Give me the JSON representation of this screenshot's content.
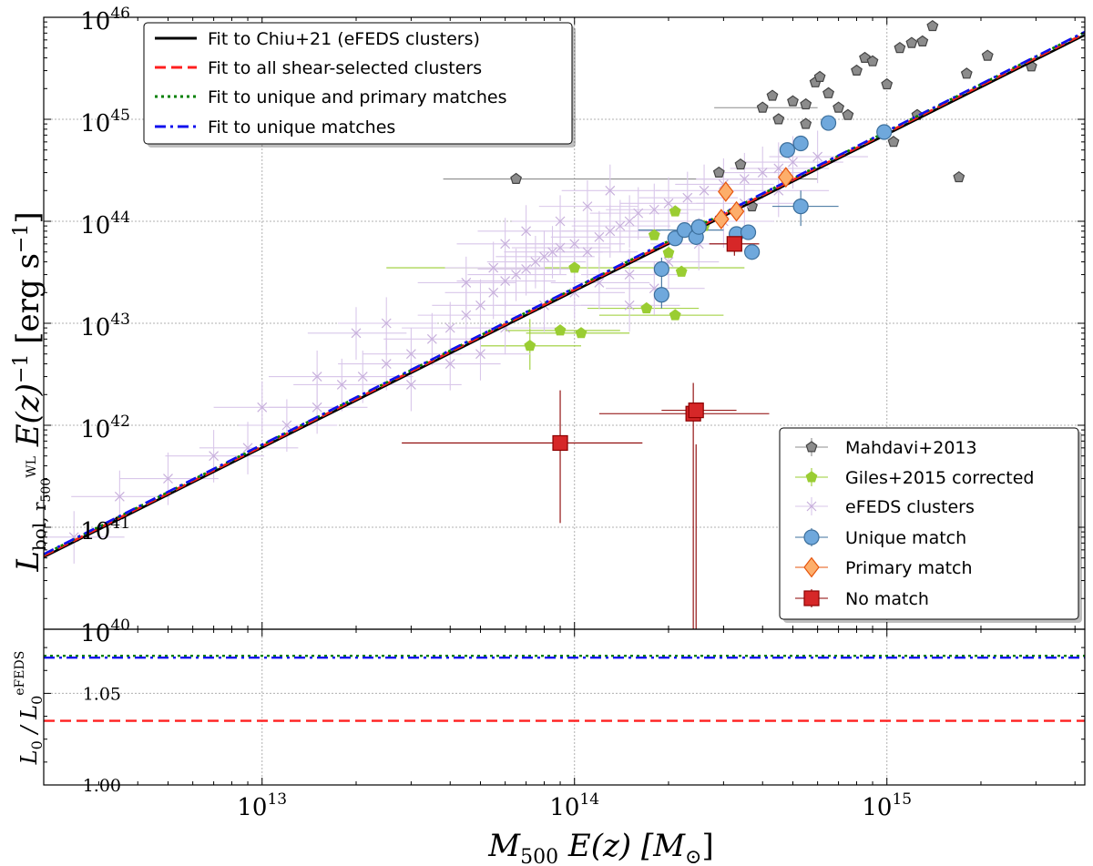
{
  "chart_data": [
    {
      "panel": "main",
      "type": "scatter",
      "x_scale": "log",
      "y_scale": "log",
      "xlim": [
        2000000000000.0,
        4300000000000000.0
      ],
      "ylim": [
        1e+40,
        1e+46
      ],
      "xlabel": {
        "main": "M",
        "sub": "500",
        "tail": " E(z)  [M",
        "unit_sub": "⊙",
        "close": "]"
      },
      "ylabel": {
        "main": "L",
        "sub": "bol, r",
        "subsub": "500",
        "supsub": "WL",
        "tail": "  E(z)",
        "power": "−1",
        "unit": "  [erg s",
        "unit_power": "−1",
        "close": "]"
      },
      "x_ticks": [
        {
          "base": "10",
          "exp": "13",
          "value": 10000000000000.0
        },
        {
          "base": "10",
          "exp": "14",
          "value": 100000000000000.0
        },
        {
          "base": "10",
          "exp": "15",
          "value": 1000000000000000.0
        }
      ],
      "y_ticks": [
        {
          "base": "10",
          "exp": "40",
          "value": 1e+40
        },
        {
          "base": "10",
          "exp": "41",
          "value": 1e+41
        },
        {
          "base": "10",
          "exp": "42",
          "value": 1e+42
        },
        {
          "base": "10",
          "exp": "43",
          "value": 1e+43
        },
        {
          "base": "10",
          "exp": "44",
          "value": 1e+44
        },
        {
          "base": "10",
          "exp": "45",
          "value": 1e+45
        },
        {
          "base": "10",
          "exp": "46",
          "value": 1e+46
        }
      ],
      "grid": true,
      "fit_lines": [
        {
          "name": "Fit to Chiu+21 (eFEDS clusters)",
          "color": "#000000",
          "style": "solid",
          "x": [
            2000000000000.0,
            4300000000000000.0
          ],
          "y": [
            5.1e+40,
            6.7e+45
          ]
        },
        {
          "name": "Fit to all shear-selected clusters",
          "color": "#ff1f1f",
          "style": "dashed",
          "x": [
            2000000000000.0,
            4300000000000000.0
          ],
          "y": [
            5.25e+40,
            6.95e+45
          ]
        },
        {
          "name": "Fit to unique and primary matches",
          "color": "#008000",
          "style": "dotted",
          "x": [
            2000000000000.0,
            4300000000000000.0
          ],
          "y": [
            5.4e+40,
            7.15e+45
          ]
        },
        {
          "name": "Fit to unique matches",
          "color": "#1010ee",
          "style": "dashdot",
          "x": [
            2000000000000.0,
            4300000000000000.0
          ],
          "y": [
            5.45e+40,
            7.2e+45
          ]
        }
      ],
      "legends": [
        {
          "placement": "top-left",
          "entries": [
            "Fit to Chiu+21 (eFEDS clusters)",
            "Fit to all shear-selected clusters",
            "Fit to unique and primary matches",
            "Fit to unique matches"
          ]
        },
        {
          "placement": "bottom-right",
          "entries": [
            "Mahdavi+2013",
            "Giles+2015 corrected",
            "eFEDS clusters",
            "Unique match",
            "Primary match",
            "No match"
          ]
        }
      ],
      "series": [
        {
          "name": "Mahdavi+2013",
          "marker": "pentagon",
          "color": "#8c8c8c",
          "edge": "#444444",
          "points": [
            {
              "x": 65000000000000.0,
              "y": 2.6e+44,
              "xerr": [
                38000000000000.0,
                600000000000000.0
              ]
            },
            {
              "x": 290000000000000.0,
              "y": 3e+44
            },
            {
              "x": 340000000000000.0,
              "y": 3.6e+44
            },
            {
              "x": 400000000000000.0,
              "y": 1.3e+45,
              "xerr": [
                280000000000000.0,
                600000000000000.0
              ]
            },
            {
              "x": 450000000000000.0,
              "y": 1e+45
            },
            {
              "x": 500000000000000.0,
              "y": 1.5e+45
            },
            {
              "x": 550000000000000.0,
              "y": 1.4e+45
            },
            {
              "x": 590000000000000.0,
              "y": 2.3e+45
            },
            {
              "x": 610000000000000.0,
              "y": 2.6e+45
            },
            {
              "x": 650000000000000.0,
              "y": 1.8e+45
            },
            {
              "x": 700000000000000.0,
              "y": 1.3e+45
            },
            {
              "x": 750000000000000.0,
              "y": 1.1e+45
            },
            {
              "x": 800000000000000.0,
              "y": 3e+45
            },
            {
              "x": 850000000000000.0,
              "y": 4e+45
            },
            {
              "x": 900000000000000.0,
              "y": 3.7e+45
            },
            {
              "x": 1000000000000000.0,
              "y": 2.2e+45
            },
            {
              "x": 1100000000000000.0,
              "y": 5e+45
            },
            {
              "x": 1200000000000000.0,
              "y": 5.6e+45
            },
            {
              "x": 1250000000000000.0,
              "y": 1.1e+45
            },
            {
              "x": 1300000000000000.0,
              "y": 5.8e+45
            },
            {
              "x": 1400000000000000.0,
              "y": 8.2e+45
            },
            {
              "x": 1800000000000000.0,
              "y": 2.8e+45
            },
            {
              "x": 2100000000000000.0,
              "y": 4.2e+45
            },
            {
              "x": 2900000000000000.0,
              "y": 3.3e+45
            },
            {
              "x": 1700000000000000.0,
              "y": 2.7e+44
            },
            {
              "x": 1050000000000000.0,
              "y": 6e+44
            },
            {
              "x": 550000000000000.0,
              "y": 9e+44
            },
            {
              "x": 430000000000000.0,
              "y": 1.7e+45
            },
            {
              "x": 370000000000000.0,
              "y": 1.4e+44
            }
          ]
        },
        {
          "name": "Giles+2015 corrected",
          "marker": "pentagon",
          "color": "#9acd32",
          "edge": "#9acd32",
          "points": [
            {
              "x": 72000000000000.0,
              "y": 6e+42,
              "xerr": [
                50000000000000.0,
                105000000000000.0
              ],
              "yerr": [
                3.5e+42,
                1.1e+43
              ]
            },
            {
              "x": 90000000000000.0,
              "y": 8.5e+42,
              "xerr": [
                60000000000000.0,
                140000000000000.0
              ]
            },
            {
              "x": 105000000000000.0,
              "y": 8e+42,
              "xerr": [
                70000000000000.0,
                150000000000000.0
              ]
            },
            {
              "x": 100000000000000.0,
              "y": 3.5e+43,
              "xerr": [
                25000000000000.0,
                350000000000000.0
              ]
            },
            {
              "x": 170000000000000.0,
              "y": 1.4e+43,
              "xerr": [
                110000000000000.0,
                250000000000000.0
              ]
            },
            {
              "x": 210000000000000.0,
              "y": 1.2e+43,
              "xerr": [
                120000000000000.0,
                300000000000000.0
              ]
            },
            {
              "x": 200000000000000.0,
              "y": 4.9e+43
            },
            {
              "x": 220000000000000.0,
              "y": 3.2e+43
            },
            {
              "x": 180000000000000.0,
              "y": 7.3e+43
            },
            {
              "x": 210000000000000.0,
              "y": 1.25e+44
            },
            {
              "x": 260000000000000.0,
              "y": 9e+43
            }
          ]
        },
        {
          "name": "eFEDS clusters",
          "marker": "cross",
          "color": "#c8b0dc",
          "edge": "#c8b0dc",
          "points": [
            {
              "x": 2500000000000.0,
              "y": 8e+40
            },
            {
              "x": 3500000000000.0,
              "y": 2e+41
            },
            {
              "x": 5000000000000.0,
              "y": 3e+41
            },
            {
              "x": 7000000000000.0,
              "y": 5e+41
            },
            {
              "x": 9000000000000.0,
              "y": 6e+41
            },
            {
              "x": 12000000000000.0,
              "y": 1e+42
            },
            {
              "x": 15000000000000.0,
              "y": 1.5e+42
            },
            {
              "x": 18000000000000.0,
              "y": 2.5e+42
            },
            {
              "x": 21000000000000.0,
              "y": 3e+42
            },
            {
              "x": 25000000000000.0,
              "y": 4e+42
            },
            {
              "x": 30000000000000.0,
              "y": 5e+42
            },
            {
              "x": 35000000000000.0,
              "y": 7e+42
            },
            {
              "x": 40000000000000.0,
              "y": 9e+42
            },
            {
              "x": 45000000000000.0,
              "y": 1.2e+43
            },
            {
              "x": 50000000000000.0,
              "y": 1.5e+43
            },
            {
              "x": 55000000000000.0,
              "y": 2e+43
            },
            {
              "x": 60000000000000.0,
              "y": 2.6e+43
            },
            {
              "x": 65000000000000.0,
              "y": 3e+43
            },
            {
              "x": 70000000000000.0,
              "y": 3.4e+43
            },
            {
              "x": 75000000000000.0,
              "y": 4e+43
            },
            {
              "x": 80000000000000.0,
              "y": 4.5e+43
            },
            {
              "x": 85000000000000.0,
              "y": 5e+43
            },
            {
              "x": 90000000000000.0,
              "y": 5.5e+43
            },
            {
              "x": 100000000000000.0,
              "y": 6e+43
            },
            {
              "x": 110000000000000.0,
              "y": 5e+43
            },
            {
              "x": 120000000000000.0,
              "y": 7e+43
            },
            {
              "x": 130000000000000.0,
              "y": 8e+43
            },
            {
              "x": 140000000000000.0,
              "y": 9e+43
            },
            {
              "x": 150000000000000.0,
              "y": 1e+44
            },
            {
              "x": 160000000000000.0,
              "y": 1.2e+44
            },
            {
              "x": 180000000000000.0,
              "y": 1.3e+44
            },
            {
              "x": 200000000000000.0,
              "y": 1.5e+44
            },
            {
              "x": 230000000000000.0,
              "y": 1.7e+44
            },
            {
              "x": 260000000000000.0,
              "y": 2e+44
            },
            {
              "x": 300000000000000.0,
              "y": 2.3e+44
            },
            {
              "x": 350000000000000.0,
              "y": 2.6e+44
            },
            {
              "x": 400000000000000.0,
              "y": 3e+44
            },
            {
              "x": 450000000000000.0,
              "y": 3.3e+44
            },
            {
              "x": 500000000000000.0,
              "y": 3.8e+44
            },
            {
              "x": 600000000000000.0,
              "y": 4.3e+44
            },
            {
              "x": 30000000000000.0,
              "y": 2.5e+42
            },
            {
              "x": 40000000000000.0,
              "y": 4e+42
            },
            {
              "x": 50000000000000.0,
              "y": 5e+42
            },
            {
              "x": 60000000000000.0,
              "y": 9e+42
            },
            {
              "x": 80000000000000.0,
              "y": 1.5e+43
            },
            {
              "x": 100000000000000.0,
              "y": 2e+43
            },
            {
              "x": 120000000000000.0,
              "y": 2.5e+43
            },
            {
              "x": 150000000000000.0,
              "y": 3e+43
            },
            {
              "x": 200000000000000.0,
              "y": 4e+43
            },
            {
              "x": 250000000000000.0,
              "y": 6e+43
            },
            {
              "x": 60000000000000.0,
              "y": 6e+43
            },
            {
              "x": 70000000000000.0,
              "y": 8e+43
            },
            {
              "x": 90000000000000.0,
              "y": 1e+44
            },
            {
              "x": 110000000000000.0,
              "y": 1.4e+44
            },
            {
              "x": 130000000000000.0,
              "y": 2e+44
            },
            {
              "x": 20000000000000.0,
              "y": 8e+42
            },
            {
              "x": 25000000000000.0,
              "y": 1e+43
            },
            {
              "x": 15000000000000.0,
              "y": 3e+42
            },
            {
              "x": 10000000000000.0,
              "y": 1.5e+42
            },
            {
              "x": 45000000000000.0,
              "y": 2.5e+43
            },
            {
              "x": 55000000000000.0,
              "y": 3.5e+43
            },
            {
              "x": 150000000000000.0,
              "y": 1.5e+43
            },
            {
              "x": 180000000000000.0,
              "y": 2.2e+43
            },
            {
              "x": 300000000000000.0,
              "y": 1e+44
            },
            {
              "x": 350000000000000.0,
              "y": 1.5e+44
            },
            {
              "x": 450000000000000.0,
              "y": 2e+44
            }
          ]
        },
        {
          "name": "Unique match",
          "marker": "circle",
          "color": "#6fa8dc",
          "edge": "#3c6f9c",
          "points": [
            {
              "x": 190000000000000.0,
              "y": 3.4e+43,
              "yerr": [
                2.6e+43,
                4.4e+43
              ]
            },
            {
              "x": 190000000000000.0,
              "y": 1.9e+43,
              "yerr": [
                1.4e+43,
                2.6e+43
              ]
            },
            {
              "x": 210000000000000.0,
              "y": 6.8e+43
            },
            {
              "x": 225000000000000.0,
              "y": 8.2e+43,
              "xerr": [
                160000000000000.0,
                300000000000000.0
              ]
            },
            {
              "x": 245000000000000.0,
              "y": 7e+43
            },
            {
              "x": 250000000000000.0,
              "y": 8.8e+43
            },
            {
              "x": 330000000000000.0,
              "y": 7.5e+43
            },
            {
              "x": 360000000000000.0,
              "y": 7.8e+43
            },
            {
              "x": 370000000000000.0,
              "y": 5e+43
            },
            {
              "x": 530000000000000.0,
              "y": 1.4e+44,
              "xerr": [
                430000000000000.0,
                700000000000000.0
              ],
              "yerr": [
                9e+43,
                2e+44
              ]
            },
            {
              "x": 480000000000000.0,
              "y": 5e+44
            },
            {
              "x": 530000000000000.0,
              "y": 5.8e+44
            },
            {
              "x": 650000000000000.0,
              "y": 9.2e+44
            },
            {
              "x": 980000000000000.0,
              "y": 7.5e+44
            }
          ]
        },
        {
          "name": "Primary match",
          "marker": "diamond",
          "color": "#fdae6b",
          "edge": "#e6550d",
          "points": [
            {
              "x": 305000000000000.0,
              "y": 1.95e+44
            },
            {
              "x": 295000000000000.0,
              "y": 1.05e+44
            },
            {
              "x": 330000000000000.0,
              "y": 1.25e+44
            },
            {
              "x": 475000000000000.0,
              "y": 2.7e+44
            }
          ]
        },
        {
          "name": "No match",
          "marker": "square",
          "color": "#d62728",
          "edge": "#8b0000",
          "points": [
            {
              "x": 90000000000000.0,
              "y": 6.7e+41,
              "xerr": [
                28000000000000.0,
                165000000000000.0
              ],
              "yerr": [
                1.1e+41,
                2.2e+42
              ]
            },
            {
              "x": 240000000000000.0,
              "y": 1.3e+42,
              "xerr": [
                120000000000000.0,
                420000000000000.0
              ],
              "yerr": [
                1e+40,
                2.6e+42
              ]
            },
            {
              "x": 245000000000000.0,
              "y": 1.4e+42,
              "xerr": [
                190000000000000.0,
                330000000000000.0
              ],
              "yerr": [
                1e+40,
                6.5e+41
              ]
            },
            {
              "x": 325000000000000.0,
              "y": 6e+43,
              "xerr": [
                270000000000000.0,
                390000000000000.0
              ],
              "yerr": [
                4.6e+43,
                7.8e+43
              ]
            }
          ]
        }
      ]
    },
    {
      "panel": "ratio",
      "type": "line",
      "x_scale": "log",
      "xlim": [
        2000000000000.0,
        4300000000000000.0
      ],
      "ylim": [
        1.0,
        1.085
      ],
      "ylabel": {
        "main": "L",
        "sub": "0",
        "mid": " / L",
        "sub2": "0",
        "sup2": "eFEDS"
      },
      "y_ticks": [
        {
          "label": "1.00",
          "value": 1.0
        },
        {
          "label": "1.05",
          "value": 1.05
        }
      ],
      "grid": true,
      "lines": [
        {
          "name": "Fit to all shear-selected clusters",
          "color": "#ff1f1f",
          "style": "dashed",
          "y": 1.035
        },
        {
          "name": "Fit to unique and primary matches",
          "color": "#008000",
          "style": "dotted",
          "y": 1.0705
        },
        {
          "name": "Fit to unique matches",
          "color": "#1010ee",
          "style": "dashdot",
          "y": 1.0695
        }
      ]
    }
  ]
}
